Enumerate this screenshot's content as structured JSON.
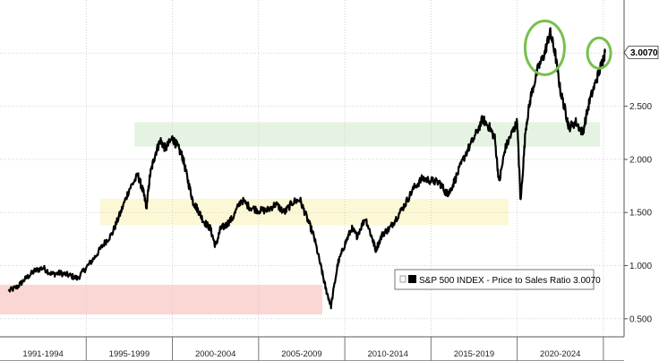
{
  "chart_data": {
    "type": "line",
    "title": "",
    "xlabel": "",
    "ylabel": "",
    "series": [
      {
        "name": "S&P 500 INDEX - Price to Sales Ratio 3.0070",
        "color": "#000000",
        "x": [
          1990.5,
          1991.0,
          1991.5,
          1992.0,
          1992.5,
          1993.0,
          1993.5,
          1994.0,
          1994.5,
          1995.0,
          1995.5,
          1996.0,
          1996.5,
          1997.0,
          1997.5,
          1998.0,
          1998.3,
          1998.5,
          1998.7,
          1999.0,
          1999.3,
          1999.6,
          2000.0,
          2000.3,
          2000.6,
          2000.9,
          2001.2,
          2001.5,
          2001.8,
          2002.2,
          2002.5,
          2002.8,
          2003.1,
          2003.5,
          2004.0,
          2004.5,
          2005.0,
          2005.5,
          2006.0,
          2006.5,
          2007.0,
          2007.4,
          2007.8,
          2008.2,
          2008.6,
          2008.9,
          2009.2,
          2009.6,
          2010.0,
          2010.4,
          2010.7,
          2011.2,
          2011.6,
          2011.8,
          2012.2,
          2012.6,
          2013.0,
          2013.5,
          2014.0,
          2014.5,
          2015.0,
          2015.5,
          2015.9,
          2016.1,
          2016.5,
          2017.0,
          2017.5,
          2018.0,
          2018.4,
          2018.7,
          2018.95,
          2019.3,
          2019.7,
          2020.0,
          2020.2,
          2020.5,
          2020.8,
          2021.2,
          2021.6,
          2021.9,
          2022.2,
          2022.5,
          2022.8,
          2023.0,
          2023.4,
          2023.8,
          2024.2,
          2024.6,
          2024.9,
          2025.1
        ],
        "y": [
          0.76,
          0.8,
          0.88,
          0.95,
          0.98,
          0.92,
          0.93,
          0.91,
          0.88,
          0.98,
          1.08,
          1.2,
          1.3,
          1.5,
          1.72,
          1.85,
          1.7,
          1.55,
          1.85,
          2.05,
          2.18,
          2.1,
          2.2,
          2.12,
          2.02,
          1.8,
          1.6,
          1.52,
          1.42,
          1.35,
          1.18,
          1.35,
          1.38,
          1.45,
          1.62,
          1.55,
          1.52,
          1.52,
          1.58,
          1.5,
          1.6,
          1.62,
          1.45,
          1.28,
          1.0,
          0.78,
          0.62,
          1.02,
          1.2,
          1.35,
          1.28,
          1.45,
          1.25,
          1.15,
          1.3,
          1.35,
          1.45,
          1.58,
          1.73,
          1.82,
          1.8,
          1.78,
          1.68,
          1.7,
          1.85,
          2.05,
          2.2,
          2.38,
          2.3,
          2.2,
          1.78,
          2.1,
          2.25,
          2.35,
          1.6,
          2.3,
          2.6,
          2.85,
          3.0,
          3.2,
          3.0,
          2.65,
          2.45,
          2.3,
          2.35,
          2.25,
          2.55,
          2.75,
          2.9,
          3.007
        ]
      }
    ],
    "ylim": [
      0.33,
      3.5
    ],
    "y_ticks": [
      "0.500",
      "1.000",
      "1.500",
      "2.000",
      "2.500",
      "3.000"
    ],
    "xlim": [
      1990.0,
      2026.2
    ],
    "x_categories": [
      "1991-1994",
      "1995-1999",
      "2000-2004",
      "2005-2009",
      "2010-2014",
      "2015-2019",
      "2020-2024"
    ],
    "last_value_label": "3.0070",
    "legend": {
      "label": "S&P 500 INDEX - Price to Sales Ratio 3.0070",
      "placement": "bottom-right"
    },
    "bands": [
      {
        "x0": 1990.0,
        "x1": 2008.7,
        "y0": 0.54,
        "y1": 0.82,
        "color": "#f8c9c6"
      },
      {
        "x0": 1995.8,
        "x1": 2019.5,
        "y0": 1.38,
        "y1": 1.63,
        "color": "#fbf6c8"
      },
      {
        "x0": 1997.8,
        "x1": 2024.8,
        "y0": 2.12,
        "y1": 2.35,
        "color": "#dcf0d8"
      }
    ],
    "circles": [
      {
        "cx": 2021.6,
        "cy": 3.05,
        "color": "#77c04d"
      },
      {
        "cx": 2024.75,
        "cy": 3.0,
        "color": "#77c04d"
      }
    ],
    "grid": true,
    "axis_side": "right"
  }
}
